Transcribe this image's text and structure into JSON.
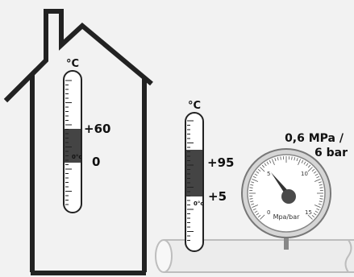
{
  "house_thermometer": {
    "unit": "°C",
    "range_high": "+60",
    "range_low": "0",
    "zero_mark": "0°c"
  },
  "pipe_thermometer": {
    "unit": "°C",
    "range_high": "+95",
    "range_low": "+5",
    "zero_mark": "0°c"
  },
  "pressure_gauge": {
    "rating_line1": "0,6 MPa /",
    "rating_line2": "6 bar",
    "dial_unit": "Mpa/bar",
    "dial_ticks": [
      "0",
      "5",
      "10",
      "15"
    ]
  }
}
